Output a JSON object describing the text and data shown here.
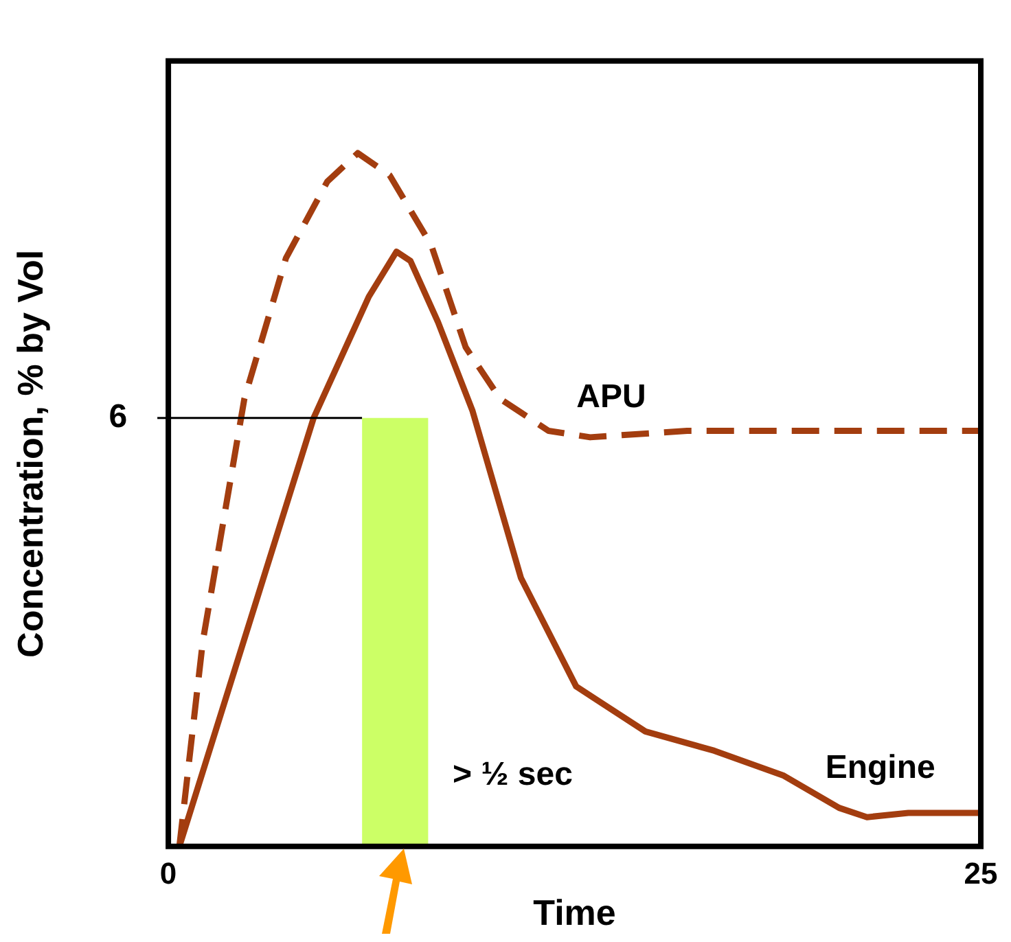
{
  "chart_data": {
    "type": "line",
    "xlabel": "Time",
    "ylabel": "Concentration, % by Vol",
    "xlim": [
      0,
      25
    ],
    "xticks": [
      0,
      25
    ],
    "ylim": [
      0,
      11
    ],
    "yticks": [
      6
    ],
    "series": [
      {
        "type": "area",
        "color": "#ccff66",
        "x": [
          5.96,
          8.0
        ],
        "values": [
          6,
          6
        ]
      },
      {
        "color": "#000000",
        "x": [
          0,
          5.96
        ],
        "values": [
          6,
          6
        ]
      },
      {
        "name": "APU",
        "line_style": "dashed",
        "color": "#a33d0f",
        "x": [
          0.34,
          1.06,
          2.34,
          3.62,
          4.89,
          5.83,
          6.81,
          8.09,
          9.15,
          10.21,
          11.7,
          12.98,
          15.96,
          25
        ],
        "values": [
          0,
          2.87,
          6.27,
          8.24,
          9.31,
          9.71,
          9.4,
          8.42,
          6.99,
          6.27,
          5.82,
          5.73,
          5.82,
          5.82
        ]
      },
      {
        "name": "Engine",
        "line_style": "solid",
        "color": "#a33d0f",
        "x": [
          0.34,
          4.47,
          6.17,
          7.02,
          7.45,
          8.3,
          9.36,
          10.85,
          12.55,
          14.68,
          16.8,
          18.94,
          20.64,
          21.5,
          22.77,
          25
        ],
        "values": [
          0,
          6,
          7.7,
          8.33,
          8.2,
          7.34,
          6.1,
          3.76,
          2.24,
          1.61,
          1.34,
          0.99,
          0.54,
          0.41,
          0.47,
          0.47
        ]
      }
    ],
    "annotations": [
      "> ½ sec"
    ],
    "grid": false,
    "legend": false,
    "marker": "none"
  }
}
